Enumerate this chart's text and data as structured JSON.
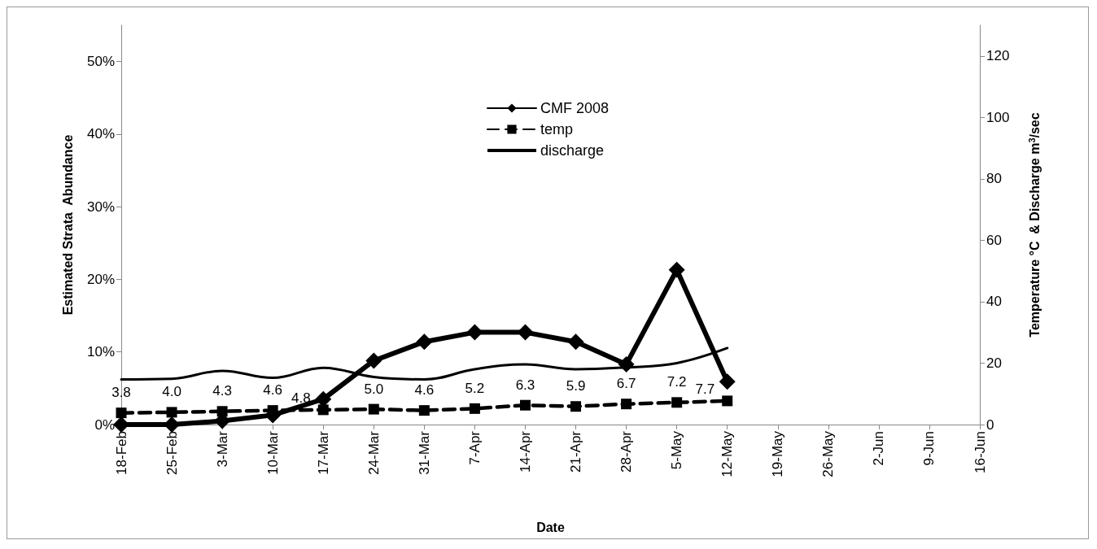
{
  "chart_data": {
    "type": "line",
    "xlabel": "Date",
    "ylabel": "Estimated Strata  Abundance",
    "y2label": "Temperature °C  & Discharge m$^{3}$/sec",
    "categories": [
      "18-Feb",
      "25-Feb",
      "3-Mar",
      "10-Mar",
      "17-Mar",
      "24-Mar",
      "31-Mar",
      "7-Apr",
      "14-Apr",
      "21-Apr",
      "28-Apr",
      "5-May",
      "12-May",
      "19-May",
      "26-May",
      "2-Jun",
      "9-Jun",
      "16-Jun"
    ],
    "series": [
      {
        "name": "CMF 2008",
        "color": "#000000",
        "marker": "diamond",
        "line_style": "solid",
        "values": [
          0,
          0,
          0.5,
          1.3,
          3.5,
          8.8,
          11.4,
          12.7,
          12.7,
          11.4,
          8.3,
          21.3,
          5.9,
          null,
          null,
          null,
          null,
          null
        ]
      },
      {
        "name": "temp",
        "color": "#000000",
        "marker": "square",
        "line_style": "dashed",
        "axis": "y2",
        "value_labels": [
          "3.8",
          "4.0",
          "4.3",
          "4.6",
          "4.8",
          "5.0",
          "4.6",
          "5.2",
          "6.3",
          "5.9",
          "6.7",
          "7.2",
          "7.7",
          null,
          null,
          null,
          null,
          null
        ],
        "values": [
          3.8,
          4.0,
          4.3,
          4.6,
          4.8,
          5.0,
          4.6,
          5.2,
          6.3,
          5.9,
          6.7,
          7.2,
          7.7,
          null,
          null,
          null,
          null,
          null
        ]
      },
      {
        "name": "discharge",
        "color": "#000000",
        "marker": "none",
        "line_style": "solid",
        "axis": "y2",
        "values": [
          14.7,
          14.9,
          17.5,
          15.2,
          18.5,
          15.5,
          14.7,
          18,
          19.6,
          18,
          18.6,
          20,
          24.9,
          null,
          null,
          null,
          null,
          null
        ]
      }
    ],
    "ylim": [
      0,
      55
    ],
    "yticks": [
      {
        "value": 0,
        "label": "0%"
      },
      {
        "value": 10,
        "label": "10%"
      },
      {
        "value": 20,
        "label": "20%"
      },
      {
        "value": 30,
        "label": "30%"
      },
      {
        "value": 40,
        "label": "40%"
      },
      {
        "value": 50,
        "label": "50%"
      }
    ],
    "y2lim": [
      0,
      130
    ],
    "y2ticks": [
      0,
      20,
      40,
      60,
      80,
      100,
      120
    ],
    "grid": false,
    "legend": "top"
  }
}
